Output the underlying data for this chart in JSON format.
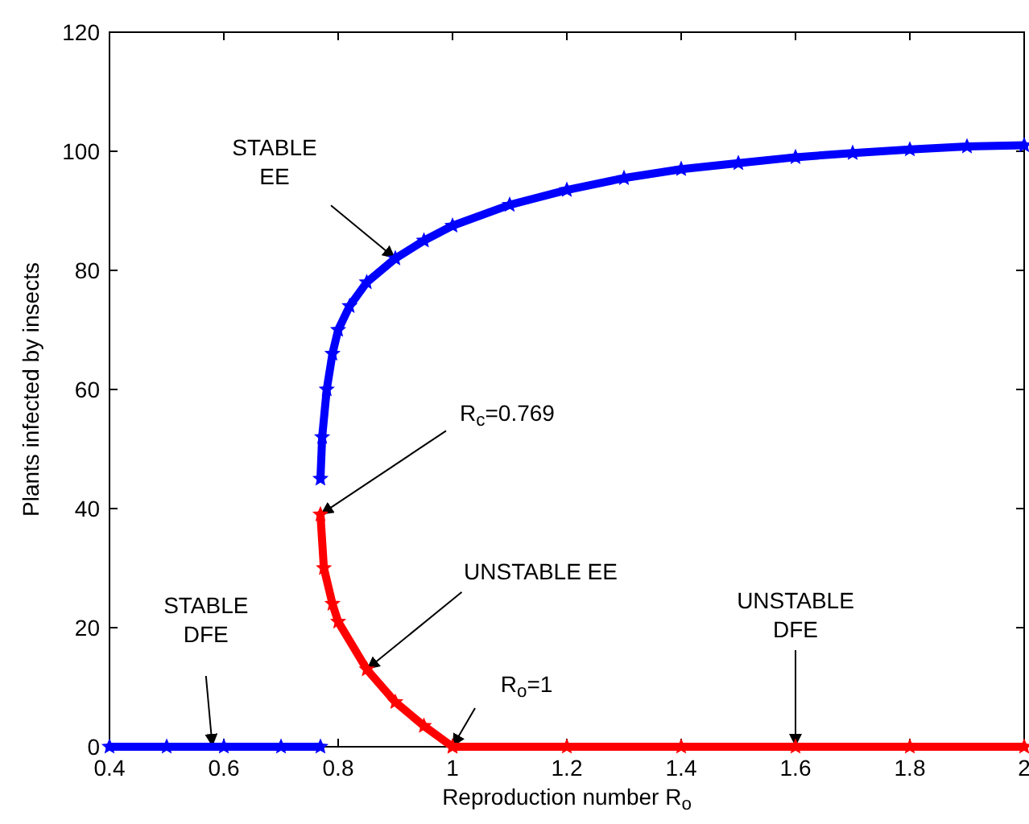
{
  "chart_data": {
    "type": "line",
    "xlabel": "Reproduction number R$_{o}$",
    "ylabel": "Plants infected by insects",
    "xlim": [
      0.4,
      2
    ],
    "xticks": [
      0.4,
      0.6,
      0.8,
      1,
      1.2,
      1.4,
      1.6,
      1.8,
      2
    ],
    "ylim": [
      0,
      120
    ],
    "yticks": [
      0,
      20,
      40,
      60,
      80,
      100,
      120
    ],
    "grid": false,
    "marker": "star",
    "line_style": "solid",
    "series": [
      {
        "color": "#0000ff",
        "x": [
          0.4,
          0.5,
          0.6,
          0.7,
          0.769
        ],
        "values": [
          0,
          0,
          0,
          0,
          0
        ]
      },
      {
        "color": "#0000ff",
        "x": [
          0.769,
          0.772,
          0.78,
          0.79,
          0.8,
          0.82,
          0.85,
          0.9,
          0.95,
          1.0,
          1.1,
          1.2,
          1.3,
          1.4,
          1.5,
          1.6,
          1.7,
          1.8,
          1.9,
          2.0
        ],
        "values": [
          45,
          52,
          60,
          66,
          70,
          74,
          78,
          82,
          85,
          87.5,
          91,
          93.5,
          95.5,
          97,
          98,
          99,
          99.7,
          100.3,
          100.8,
          101
        ]
      },
      {
        "color": "#ff0000",
        "x": [
          0.769,
          0.775,
          0.79,
          0.8,
          0.85,
          0.9,
          0.95,
          1.0
        ],
        "values": [
          39,
          30,
          24,
          21,
          13,
          7.5,
          3.5,
          0
        ]
      },
      {
        "color": "#ff0000",
        "x": [
          1,
          1.2,
          1.4,
          1.6,
          1.8,
          2
        ],
        "values": [
          0,
          0,
          0,
          0,
          0,
          0
        ]
      }
    ],
    "annotations": [
      {
        "text": "STABLE\nEE",
        "x": 0.9,
        "y": 82
      },
      {
        "text": "R$_{c}$=0.769",
        "x": 0.769,
        "y": 39
      },
      {
        "text": "UNSTABLE EE",
        "x": 0.85,
        "y": 13
      },
      {
        "text": "R$_{o}$=1",
        "x": 1,
        "y": 0
      },
      {
        "text": "UNSTABLE\nDFE",
        "x": 1.6,
        "y": 0
      },
      {
        "text": "STABLE\nDFE",
        "x": 0.58,
        "y": 0
      }
    ]
  }
}
